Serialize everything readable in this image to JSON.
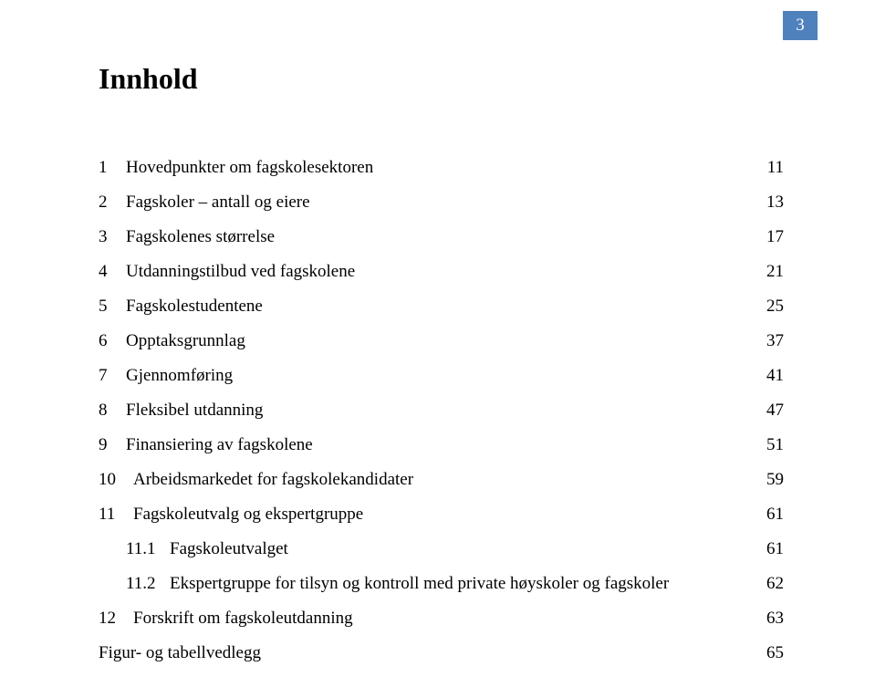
{
  "page_number_box": "3",
  "title": "Innhold",
  "colors": {
    "page_box_bg": "#4f81bd",
    "page_box_text": "#ffffff",
    "body_bg": "#ffffff",
    "text": "#000000"
  },
  "typography": {
    "title_fontsize": 32,
    "entry_fontsize": 19,
    "font_family": "Times New Roman"
  },
  "toc": [
    {
      "num": "1",
      "text": "Hovedpunkter om fagskolesektoren",
      "page": "11",
      "level": 0
    },
    {
      "num": "2",
      "text": "Fagskoler – antall og eiere",
      "page": "13",
      "level": 0
    },
    {
      "num": "3",
      "text": "Fagskolenes størrelse",
      "page": "17",
      "level": 0
    },
    {
      "num": "4",
      "text": "Utdanningstilbud ved fagskolene",
      "page": "21",
      "level": 0
    },
    {
      "num": "5",
      "text": "Fagskolestudentene",
      "page": "25",
      "level": 0
    },
    {
      "num": "6",
      "text": "Opptaksgrunnlag",
      "page": "37",
      "level": 0
    },
    {
      "num": "7",
      "text": "Gjennomføring",
      "page": "41",
      "level": 0
    },
    {
      "num": "8",
      "text": "Fleksibel utdanning",
      "page": "47",
      "level": 0
    },
    {
      "num": "9",
      "text": "Finansiering av fagskolene",
      "page": "51",
      "level": 0
    },
    {
      "num": "10",
      "text": "Arbeidsmarkedet for fagskolekandidater",
      "page": "59",
      "level": 0
    },
    {
      "num": "11",
      "text": "Fagskoleutvalg og ekspertgruppe",
      "page": "61",
      "level": 0
    },
    {
      "num": "11.1",
      "text": "Fagskoleutvalget",
      "page": "61",
      "level": 1
    },
    {
      "num": "11.2",
      "text": "Ekspertgruppe for tilsyn og kontroll med private høyskoler og fagskoler",
      "page": "62",
      "level": 1
    },
    {
      "num": "12",
      "text": "Forskrift om fagskoleutdanning",
      "page": "63",
      "level": 0
    },
    {
      "num": "",
      "text": "Figur- og tabellvedlegg",
      "page": "65",
      "level": 0
    }
  ]
}
